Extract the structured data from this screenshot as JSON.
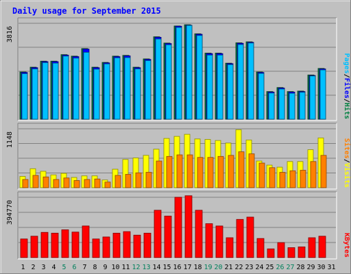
{
  "chart_data": [
    {
      "type": "bar",
      "title": "Daily usage for September 2015",
      "panel": "pages-files-hits",
      "ylabel_max": "3816",
      "ymax": 3816,
      "categories": [
        "1",
        "2",
        "3",
        "4",
        "5",
        "6",
        "7",
        "8",
        "9",
        "10",
        "11",
        "12",
        "13",
        "14",
        "15",
        "16",
        "17",
        "18",
        "19",
        "20",
        "21",
        "22",
        "23",
        "24",
        "25",
        "26",
        "27",
        "28",
        "29",
        "30",
        "31"
      ],
      "weekend_days": [
        "5",
        "6",
        "12",
        "13",
        "19",
        "20",
        "26",
        "27"
      ],
      "series": [
        {
          "name": "Hits",
          "color": "#008040",
          "values": [
            1880,
            2070,
            2310,
            2310,
            2570,
            2510,
            2810,
            2070,
            2260,
            2510,
            2540,
            2070,
            2400,
            3280,
            3030,
            3710,
            3760,
            3400,
            2630,
            2630,
            2230,
            3040,
            3080,
            1880,
            1100,
            1260,
            1100,
            1120,
            1760,
            2020,
            0
          ]
        },
        {
          "name": "Files",
          "color": "#0000ff",
          "values": [
            1860,
            2050,
            2290,
            2290,
            2550,
            2490,
            2790,
            2050,
            2240,
            2490,
            2520,
            2050,
            2380,
            3260,
            3010,
            3700,
            3740,
            3380,
            2610,
            2610,
            2210,
            3020,
            3060,
            1860,
            1080,
            1240,
            1080,
            1100,
            1740,
            2000,
            0
          ]
        },
        {
          "name": "Pages",
          "color": "#00c0ff",
          "values": [
            1810,
            2000,
            2250,
            2230,
            2510,
            2430,
            2660,
            1990,
            2200,
            2440,
            2450,
            2000,
            2330,
            3190,
            2960,
            3650,
            3730,
            3330,
            2550,
            2550,
            2170,
            2970,
            3030,
            1820,
            1040,
            1200,
            1030,
            1070,
            1720,
            1960,
            0
          ]
        }
      ],
      "legend": [
        "Pages",
        "/",
        "Files",
        "/",
        "Hits"
      ],
      "legend_colors": [
        "#00c0ff",
        "#000000",
        "#0000ff",
        "#000000",
        "#008040"
      ]
    },
    {
      "type": "bar",
      "panel": "visits-sites",
      "ylabel_max": "1148",
      "ymax": 1148,
      "categories": [
        "1",
        "2",
        "3",
        "4",
        "5",
        "6",
        "7",
        "8",
        "9",
        "10",
        "11",
        "12",
        "13",
        "14",
        "15",
        "16",
        "17",
        "18",
        "19",
        "20",
        "21",
        "22",
        "23",
        "24",
        "25",
        "26",
        "27",
        "28",
        "29",
        "30",
        "31"
      ],
      "series": [
        {
          "name": "Visits",
          "color": "#ffff00",
          "values": [
            220,
            370,
            320,
            250,
            280,
            200,
            230,
            230,
            150,
            360,
            550,
            580,
            630,
            750,
            960,
            1000,
            1040,
            950,
            940,
            920,
            870,
            1130,
            930,
            520,
            440,
            400,
            510,
            510,
            740,
            970,
            0
          ]
        },
        {
          "name": "Sites",
          "color": "#ff8000",
          "values": [
            160,
            240,
            210,
            160,
            190,
            140,
            160,
            170,
            110,
            240,
            260,
            290,
            300,
            520,
            610,
            640,
            640,
            590,
            590,
            610,
            630,
            700,
            660,
            480,
            390,
            300,
            330,
            340,
            510,
            630,
            0
          ]
        }
      ],
      "legend": [
        "Sites",
        "/",
        "Visits"
      ],
      "legend_colors": [
        "#ff8000",
        "#000000",
        "#ffff00"
      ]
    },
    {
      "type": "bar",
      "panel": "kbytes",
      "ylabel_max": "394770",
      "ymax": 394770,
      "categories": [
        "1",
        "2",
        "3",
        "4",
        "5",
        "6",
        "7",
        "8",
        "9",
        "10",
        "11",
        "12",
        "13",
        "14",
        "15",
        "16",
        "17",
        "18",
        "19",
        "20",
        "21",
        "22",
        "23",
        "24",
        "25",
        "26",
        "27",
        "28",
        "29",
        "30",
        "31"
      ],
      "series": [
        {
          "name": "KBytes",
          "color": "#ff0000",
          "values": [
            122000,
            140000,
            165000,
            160000,
            182000,
            167000,
            207000,
            122000,
            135000,
            160000,
            170000,
            147000,
            160000,
            310000,
            272000,
            395000,
            405000,
            310000,
            222000,
            207000,
            130000,
            250000,
            265000,
            125000,
            57000,
            98000,
            65000,
            70000,
            130000,
            140000,
            0
          ]
        }
      ],
      "legend": [
        "KBytes"
      ],
      "legend_colors": [
        "#ff0000"
      ]
    }
  ],
  "colors": {
    "background": "#c0c0c0",
    "plot_background": "#c0c0c0",
    "title": "#0000ff",
    "weekend_label": "#00805c",
    "weekday_label": "#000000"
  }
}
